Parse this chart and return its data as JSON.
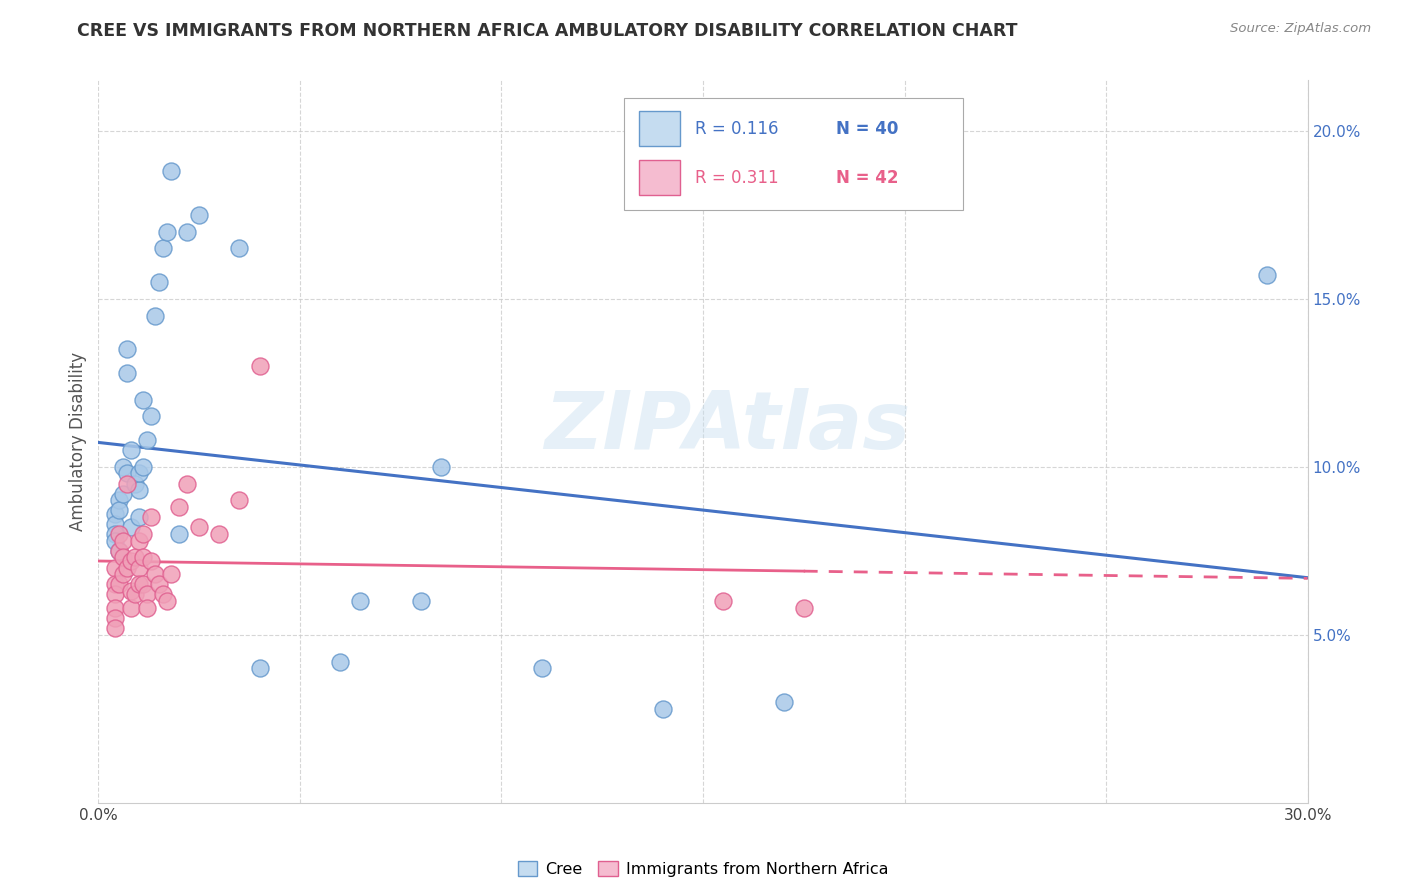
{
  "title": "CREE VS IMMIGRANTS FROM NORTHERN AFRICA AMBULATORY DISABILITY CORRELATION CHART",
  "source": "Source: ZipAtlas.com",
  "ylabel": "Ambulatory Disability",
  "xlim": [
    0.0,
    0.3
  ],
  "ylim": [
    0.0,
    0.215
  ],
  "xticks": [
    0.0,
    0.05,
    0.1,
    0.15,
    0.2,
    0.25,
    0.3
  ],
  "yticks_right": [
    0.05,
    0.1,
    0.15,
    0.2
  ],
  "ytick_labels_right": [
    "5.0%",
    "10.0%",
    "15.0%",
    "20.0%"
  ],
  "xtick_labels": [
    "0.0%",
    "",
    "",
    "",
    "",
    "",
    "30.0%"
  ],
  "watermark": "ZIPAtlas",
  "legend_R1": "0.116",
  "legend_N1": "40",
  "legend_R2": "0.311",
  "legend_N2": "42",
  "cree_line_color": "#4472c4",
  "immig_line_color": "#e8608a",
  "cree_marker_facecolor": "#a8c8e8",
  "cree_marker_edgecolor": "#6699cc",
  "immig_marker_facecolor": "#f0a0b8",
  "immig_marker_edgecolor": "#e06090",
  "background_color": "#ffffff",
  "grid_color": "#cccccc",
  "cree_legend_facecolor": "#c5dcf0",
  "cree_legend_edgecolor": "#6699cc",
  "immig_legend_facecolor": "#f5bcd0",
  "immig_legend_edgecolor": "#e06090",
  "cree_x": [
    0.004,
    0.004,
    0.004,
    0.004,
    0.005,
    0.005,
    0.005,
    0.006,
    0.006,
    0.007,
    0.007,
    0.007,
    0.008,
    0.008,
    0.009,
    0.01,
    0.01,
    0.01,
    0.011,
    0.011,
    0.012,
    0.013,
    0.014,
    0.015,
    0.016,
    0.017,
    0.018,
    0.02,
    0.022,
    0.025,
    0.035,
    0.04,
    0.06,
    0.065,
    0.08,
    0.085,
    0.11,
    0.14,
    0.17,
    0.29
  ],
  "cree_y": [
    0.086,
    0.083,
    0.08,
    0.078,
    0.09,
    0.087,
    0.075,
    0.1,
    0.092,
    0.135,
    0.128,
    0.098,
    0.105,
    0.082,
    0.095,
    0.085,
    0.093,
    0.098,
    0.12,
    0.1,
    0.108,
    0.115,
    0.145,
    0.155,
    0.165,
    0.17,
    0.188,
    0.08,
    0.17,
    0.175,
    0.165,
    0.04,
    0.042,
    0.06,
    0.06,
    0.1,
    0.04,
    0.028,
    0.03,
    0.157
  ],
  "immig_x": [
    0.004,
    0.004,
    0.004,
    0.004,
    0.004,
    0.004,
    0.005,
    0.005,
    0.005,
    0.006,
    0.006,
    0.006,
    0.007,
    0.007,
    0.008,
    0.008,
    0.008,
    0.009,
    0.009,
    0.01,
    0.01,
    0.01,
    0.011,
    0.011,
    0.011,
    0.012,
    0.012,
    0.013,
    0.013,
    0.014,
    0.015,
    0.016,
    0.017,
    0.018,
    0.02,
    0.022,
    0.025,
    0.03,
    0.035,
    0.04,
    0.155,
    0.175
  ],
  "immig_y": [
    0.07,
    0.065,
    0.062,
    0.058,
    0.055,
    0.052,
    0.08,
    0.075,
    0.065,
    0.078,
    0.073,
    0.068,
    0.095,
    0.07,
    0.072,
    0.063,
    0.058,
    0.073,
    0.062,
    0.078,
    0.07,
    0.065,
    0.08,
    0.073,
    0.065,
    0.062,
    0.058,
    0.085,
    0.072,
    0.068,
    0.065,
    0.062,
    0.06,
    0.068,
    0.088,
    0.095,
    0.082,
    0.08,
    0.09,
    0.13,
    0.06,
    0.058
  ]
}
